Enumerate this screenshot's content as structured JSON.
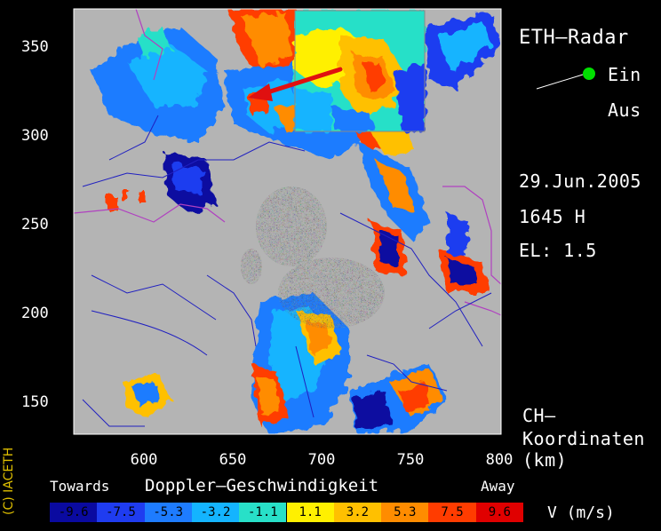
{
  "title": "ETH—Radar",
  "toggle": {
    "on_label": "Ein",
    "off_label": "Aus",
    "state_color": "#00e000"
  },
  "date": "29.Jun.2005",
  "time": "1645 H",
  "elevation": "EL: 1.5",
  "coords": {
    "line1": "CH—",
    "line2": "Koordinaten",
    "unit": "(km)"
  },
  "y_axis": {
    "ticks": [
      "350",
      "300",
      "250",
      "200",
      "150"
    ]
  },
  "x_axis": {
    "ticks": [
      "600",
      "650",
      "700",
      "750",
      "800"
    ]
  },
  "legend": {
    "title": "Doppler—Geschwindigkeit",
    "left_label": "Towards",
    "right_label": "Away",
    "unit_label": "V  (m/s)",
    "values": [
      "-9.6",
      "-7.5",
      "-5.3",
      "-3.2",
      "-1.1",
      "1.1",
      "3.2",
      "5.3",
      "7.5",
      "9.6"
    ],
    "colors": [
      "#0a0aa0",
      "#1f3cf0",
      "#1e7cff",
      "#14b4ff",
      "#28e0c8",
      "#fff000",
      "#ffc000",
      "#ff8c00",
      "#ff3c00",
      "#e00000"
    ]
  },
  "copyright": "(C) IACETH"
}
